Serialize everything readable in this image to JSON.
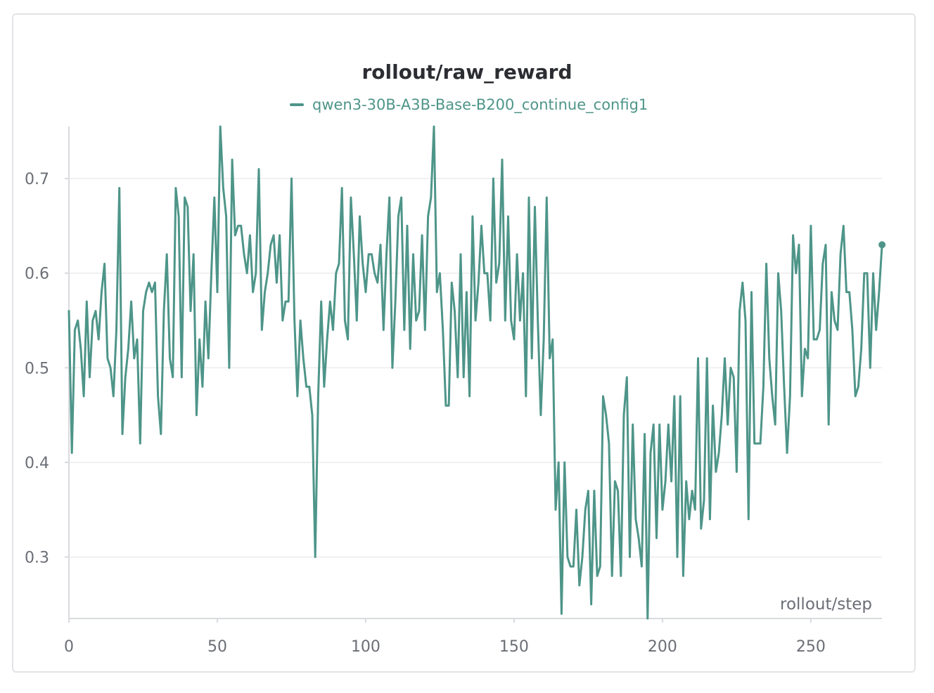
{
  "chart_data": {
    "type": "line",
    "title": "rollout/raw_reward",
    "xlabel": "rollout/step",
    "ylabel": "",
    "xlim": [
      0,
      275
    ],
    "ylim": [
      0.235,
      0.755
    ],
    "x_ticks": [
      0,
      50,
      100,
      150,
      200,
      250
    ],
    "y_ticks": [
      0.3,
      0.4,
      0.5,
      0.6,
      0.7
    ],
    "grid": "horizontal",
    "legend_position": "top-center",
    "colors": {
      "series": "#4e9589",
      "grid": "#ececee",
      "axis": "#d9dade",
      "tick_text": "#6b6e76"
    },
    "series": [
      {
        "name": "qwen3-30B-A3B-Base-B200_continue_config1",
        "x": [
          0,
          1,
          2,
          3,
          4,
          5,
          6,
          7,
          8,
          9,
          10,
          11,
          12,
          13,
          14,
          15,
          16,
          17,
          18,
          19,
          20,
          21,
          22,
          23,
          24,
          25,
          26,
          27,
          28,
          29,
          30,
          31,
          32,
          33,
          34,
          35,
          36,
          37,
          38,
          39,
          40,
          41,
          42,
          43,
          44,
          45,
          46,
          47,
          48,
          49,
          50,
          51,
          52,
          53,
          54,
          55,
          56,
          57,
          58,
          59,
          60,
          61,
          62,
          63,
          64,
          65,
          66,
          67,
          68,
          69,
          70,
          71,
          72,
          73,
          74,
          75,
          76,
          77,
          78,
          79,
          80,
          81,
          82,
          83,
          84,
          85,
          86,
          87,
          88,
          89,
          90,
          91,
          92,
          93,
          94,
          95,
          96,
          97,
          98,
          99,
          100,
          101,
          102,
          103,
          104,
          105,
          106,
          107,
          108,
          109,
          110,
          111,
          112,
          113,
          114,
          115,
          116,
          117,
          118,
          119,
          120,
          121,
          122,
          123,
          124,
          125,
          126,
          127,
          128,
          129,
          130,
          131,
          132,
          133,
          134,
          135,
          136,
          137,
          138,
          139,
          140,
          141,
          142,
          143,
          144,
          145,
          146,
          147,
          148,
          149,
          150,
          151,
          152,
          153,
          154,
          155,
          156,
          157,
          158,
          159,
          160,
          161,
          162,
          163,
          164,
          165,
          166,
          167,
          168,
          169,
          170,
          171,
          172,
          173,
          174,
          175,
          176,
          177,
          178,
          179,
          180,
          181,
          182,
          183,
          184,
          185,
          186,
          187,
          188,
          189,
          190,
          191,
          192,
          193,
          194,
          195,
          196,
          197,
          198,
          199,
          200,
          201,
          202,
          203,
          204,
          205,
          206,
          207,
          208,
          209,
          210,
          211,
          212,
          213,
          214,
          215,
          216,
          217,
          218,
          219,
          220,
          221,
          222,
          223,
          224,
          225,
          226,
          227,
          228,
          229,
          230,
          231,
          232,
          233,
          234,
          235,
          236,
          237,
          238,
          239,
          240,
          241,
          242,
          243,
          244,
          245,
          246,
          247,
          248,
          249,
          250,
          251,
          252,
          253,
          254,
          255,
          256,
          257,
          258,
          259,
          260,
          261,
          262,
          263,
          264,
          265,
          266,
          267,
          268,
          269,
          270,
          271,
          272,
          273,
          274
        ],
        "values": [
          0.56,
          0.41,
          0.54,
          0.55,
          0.52,
          0.47,
          0.57,
          0.49,
          0.55,
          0.56,
          0.53,
          0.58,
          0.61,
          0.51,
          0.5,
          0.47,
          0.54,
          0.69,
          0.43,
          0.49,
          0.52,
          0.57,
          0.51,
          0.53,
          0.42,
          0.56,
          0.58,
          0.59,
          0.58,
          0.59,
          0.47,
          0.43,
          0.56,
          0.62,
          0.51,
          0.49,
          0.69,
          0.66,
          0.49,
          0.68,
          0.67,
          0.56,
          0.62,
          0.45,
          0.53,
          0.48,
          0.57,
          0.51,
          0.6,
          0.68,
          0.58,
          0.755,
          0.69,
          0.66,
          0.5,
          0.72,
          0.64,
          0.65,
          0.65,
          0.62,
          0.6,
          0.64,
          0.58,
          0.6,
          0.71,
          0.54,
          0.58,
          0.6,
          0.63,
          0.64,
          0.59,
          0.64,
          0.55,
          0.57,
          0.57,
          0.7,
          0.55,
          0.47,
          0.55,
          0.51,
          0.48,
          0.48,
          0.45,
          0.3,
          0.47,
          0.57,
          0.48,
          0.53,
          0.57,
          0.54,
          0.6,
          0.61,
          0.69,
          0.55,
          0.53,
          0.68,
          0.62,
          0.55,
          0.66,
          0.61,
          0.58,
          0.62,
          0.62,
          0.6,
          0.59,
          0.63,
          0.54,
          0.62,
          0.68,
          0.5,
          0.57,
          0.66,
          0.68,
          0.54,
          0.65,
          0.52,
          0.62,
          0.55,
          0.56,
          0.64,
          0.54,
          0.66,
          0.68,
          0.755,
          0.58,
          0.6,
          0.54,
          0.46,
          0.46,
          0.59,
          0.56,
          0.49,
          0.62,
          0.49,
          0.58,
          0.47,
          0.66,
          0.55,
          0.59,
          0.65,
          0.6,
          0.6,
          0.55,
          0.7,
          0.59,
          0.61,
          0.72,
          0.55,
          0.66,
          0.55,
          0.53,
          0.62,
          0.55,
          0.6,
          0.47,
          0.68,
          0.51,
          0.67,
          0.55,
          0.45,
          0.53,
          0.68,
          0.51,
          0.53,
          0.35,
          0.4,
          0.24,
          0.4,
          0.3,
          0.29,
          0.29,
          0.35,
          0.27,
          0.3,
          0.35,
          0.37,
          0.25,
          0.37,
          0.28,
          0.29,
          0.47,
          0.45,
          0.42,
          0.28,
          0.38,
          0.37,
          0.28,
          0.45,
          0.49,
          0.3,
          0.44,
          0.34,
          0.32,
          0.29,
          0.43,
          0.235,
          0.41,
          0.44,
          0.32,
          0.44,
          0.35,
          0.38,
          0.44,
          0.38,
          0.47,
          0.3,
          0.47,
          0.28,
          0.38,
          0.34,
          0.37,
          0.35,
          0.51,
          0.33,
          0.36,
          0.51,
          0.34,
          0.46,
          0.39,
          0.41,
          0.45,
          0.51,
          0.44,
          0.5,
          0.49,
          0.39,
          0.56,
          0.59,
          0.55,
          0.34,
          0.58,
          0.42,
          0.42,
          0.42,
          0.48,
          0.61,
          0.51,
          0.47,
          0.44,
          0.6,
          0.56,
          0.48,
          0.41,
          0.47,
          0.64,
          0.6,
          0.63,
          0.47,
          0.52,
          0.51,
          0.65,
          0.53,
          0.53,
          0.54,
          0.61,
          0.63,
          0.44,
          0.58,
          0.55,
          0.54,
          0.62,
          0.65,
          0.58,
          0.58,
          0.54,
          0.47,
          0.48,
          0.52,
          0.6,
          0.6,
          0.5,
          0.6,
          0.54,
          0.58,
          0.63
        ]
      }
    ]
  }
}
